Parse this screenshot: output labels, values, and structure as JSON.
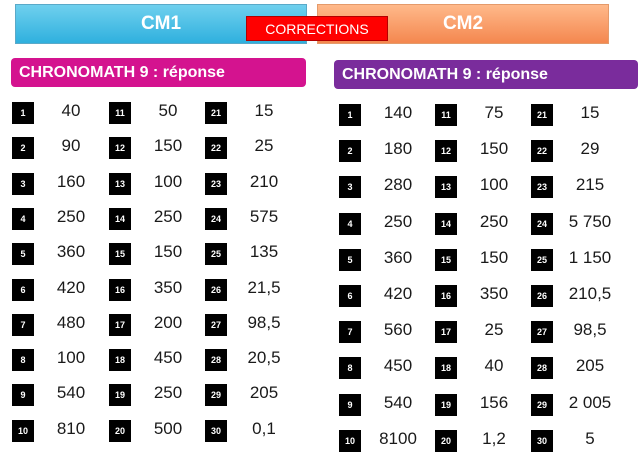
{
  "tabs": {
    "cm1": "CM1",
    "cm2": "CM2",
    "corrections": "CORRECTIONS"
  },
  "accent_colors": {
    "cm1_tab": "#2fb0de",
    "cm2_tab": "#f4874f",
    "corrections": "#ff0000",
    "cm1_header": "#d4138f",
    "cm2_header": "#7a2c9c"
  },
  "cm1": {
    "title": "CHRONOMATH 9 : réponse",
    "columns": [
      [
        {
          "n": "1",
          "v": "40"
        },
        {
          "n": "2",
          "v": "90"
        },
        {
          "n": "3",
          "v": "160"
        },
        {
          "n": "4",
          "v": "250"
        },
        {
          "n": "5",
          "v": "360"
        },
        {
          "n": "6",
          "v": "420"
        },
        {
          "n": "7",
          "v": "480"
        },
        {
          "n": "8",
          "v": "100"
        },
        {
          "n": "9",
          "v": "540"
        },
        {
          "n": "10",
          "v": "810"
        }
      ],
      [
        {
          "n": "11",
          "v": "50"
        },
        {
          "n": "12",
          "v": "150"
        },
        {
          "n": "13",
          "v": "100"
        },
        {
          "n": "14",
          "v": "250"
        },
        {
          "n": "15",
          "v": "150"
        },
        {
          "n": "16",
          "v": "350"
        },
        {
          "n": "17",
          "v": "200"
        },
        {
          "n": "18",
          "v": "450"
        },
        {
          "n": "19",
          "v": "250"
        },
        {
          "n": "20",
          "v": "500"
        }
      ],
      [
        {
          "n": "21",
          "v": "15"
        },
        {
          "n": "22",
          "v": "25"
        },
        {
          "n": "23",
          "v": "210"
        },
        {
          "n": "24",
          "v": "575"
        },
        {
          "n": "25",
          "v": "135"
        },
        {
          "n": "26",
          "v": "21,5"
        },
        {
          "n": "27",
          "v": "98,5"
        },
        {
          "n": "28",
          "v": "20,5"
        },
        {
          "n": "29",
          "v": "205"
        },
        {
          "n": "30",
          "v": "0,1"
        }
      ]
    ]
  },
  "cm2": {
    "title": "CHRONOMATH 9 : réponse",
    "columns": [
      [
        {
          "n": "1",
          "v": "140"
        },
        {
          "n": "2",
          "v": "180"
        },
        {
          "n": "3",
          "v": "280"
        },
        {
          "n": "4",
          "v": "250"
        },
        {
          "n": "5",
          "v": "360"
        },
        {
          "n": "6",
          "v": "420"
        },
        {
          "n": "7",
          "v": "560"
        },
        {
          "n": "8",
          "v": "450"
        },
        {
          "n": "9",
          "v": "540"
        },
        {
          "n": "10",
          "v": "8100"
        }
      ],
      [
        {
          "n": "11",
          "v": "75"
        },
        {
          "n": "12",
          "v": "150"
        },
        {
          "n": "13",
          "v": "100"
        },
        {
          "n": "14",
          "v": "250"
        },
        {
          "n": "15",
          "v": "150"
        },
        {
          "n": "16",
          "v": "350"
        },
        {
          "n": "17",
          "v": "25"
        },
        {
          "n": "18",
          "v": "40"
        },
        {
          "n": "19",
          "v": "156"
        },
        {
          "n": "20",
          "v": "1,2"
        }
      ],
      [
        {
          "n": "21",
          "v": "15"
        },
        {
          "n": "22",
          "v": "29"
        },
        {
          "n": "23",
          "v": "215"
        },
        {
          "n": "24",
          "v": "5 750"
        },
        {
          "n": "25",
          "v": "1 150"
        },
        {
          "n": "26",
          "v": "210,5"
        },
        {
          "n": "27",
          "v": "98,5"
        },
        {
          "n": "28",
          "v": "205"
        },
        {
          "n": "29",
          "v": "2 005"
        },
        {
          "n": "30",
          "v": "5"
        }
      ]
    ]
  }
}
